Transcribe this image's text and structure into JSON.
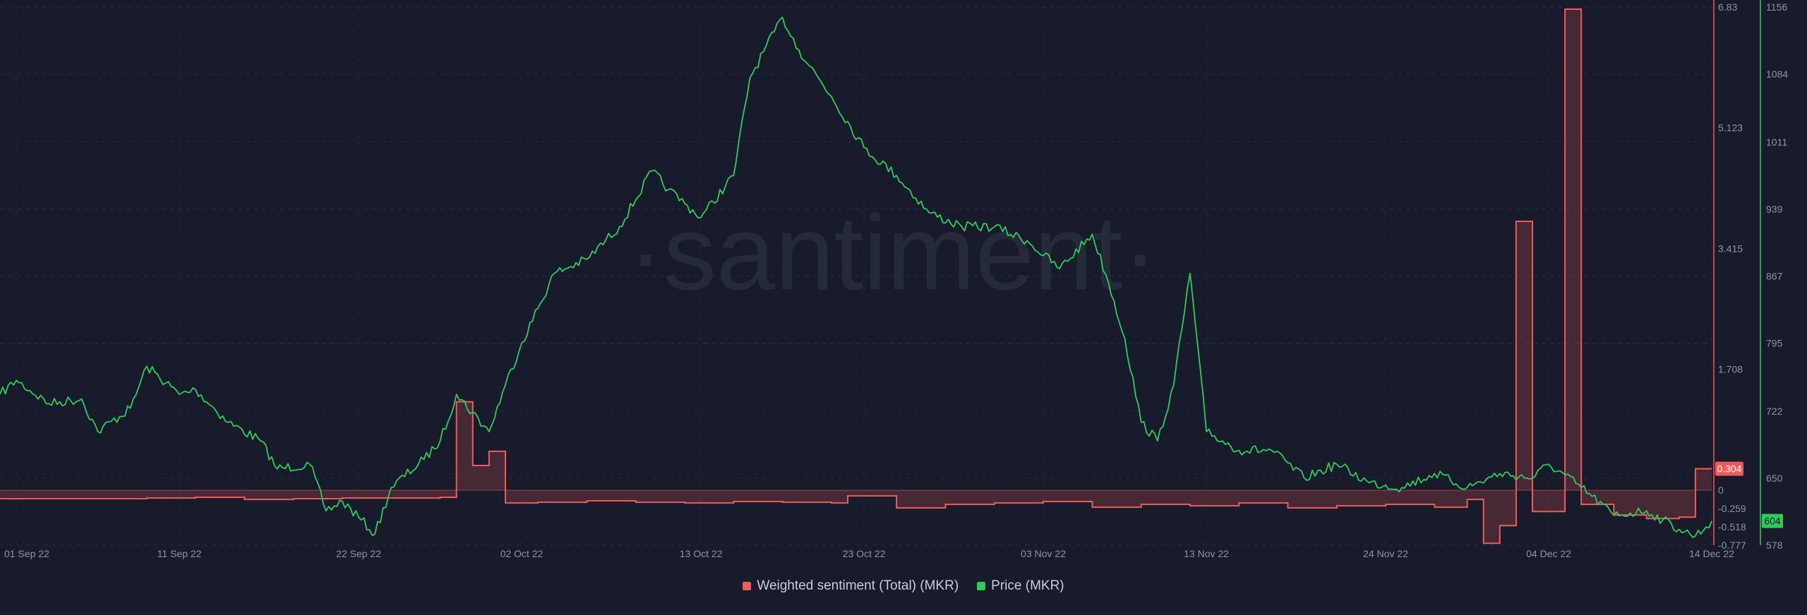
{
  "chart_data": {
    "type": "line",
    "watermark": "·santiment·",
    "x_range": [
      "2022-08-31",
      "2022-12-14"
    ],
    "x_ticks": [
      {
        "date": "2022-09-01",
        "label": "01 Sep 22"
      },
      {
        "date": "2022-09-11",
        "label": "11 Sep 22"
      },
      {
        "date": "2022-09-22",
        "label": "22 Sep 22"
      },
      {
        "date": "2022-10-02",
        "label": "02 Oct 22"
      },
      {
        "date": "2022-10-13",
        "label": "13 Oct 22"
      },
      {
        "date": "2022-10-23",
        "label": "23 Oct 22"
      },
      {
        "date": "2022-11-03",
        "label": "03 Nov 22"
      },
      {
        "date": "2022-11-13",
        "label": "13 Nov 22"
      },
      {
        "date": "2022-11-24",
        "label": "24 Nov 22"
      },
      {
        "date": "2022-12-04",
        "label": "04 Dec 22"
      },
      {
        "date": "2022-12-14",
        "label": "14 Dec 22"
      }
    ],
    "sentiment_axis": {
      "ylim": [
        -0.777,
        6.83
      ],
      "ticks": [
        "6.83",
        "5.123",
        "3.415",
        "1.708",
        "0",
        "-0.259",
        "-0.518",
        "-0.777"
      ],
      "tick_values": [
        6.83,
        5.123,
        3.415,
        1.708,
        0,
        -0.259,
        -0.518,
        -0.777
      ]
    },
    "price_axis": {
      "ylim": [
        578,
        1156
      ],
      "ticks": [
        "1156",
        "1084",
        "1011",
        "939",
        "867",
        "795",
        "722",
        "650",
        "578"
      ],
      "tick_values": [
        1156,
        1084,
        1011,
        939,
        867,
        795,
        722,
        650,
        578
      ]
    },
    "series": [
      {
        "name": "Weighted sentiment (Total) (MKR)",
        "axis": "sentiment",
        "color": "#ef5b5b",
        "current_label": "0.304",
        "x": [
          "2022-08-31",
          "2022-09-03",
          "2022-09-06",
          "2022-09-09",
          "2022-09-12",
          "2022-09-15",
          "2022-09-18",
          "2022-09-21",
          "2022-09-24",
          "2022-09-27",
          "2022-09-28",
          "2022-09-29",
          "2022-09-30",
          "2022-10-01",
          "2022-10-03",
          "2022-10-06",
          "2022-10-09",
          "2022-10-12",
          "2022-10-15",
          "2022-10-18",
          "2022-10-21",
          "2022-10-22",
          "2022-10-25",
          "2022-10-28",
          "2022-10-31",
          "2022-11-03",
          "2022-11-06",
          "2022-11-09",
          "2022-11-12",
          "2022-11-15",
          "2022-11-18",
          "2022-11-21",
          "2022-11-24",
          "2022-11-27",
          "2022-11-29",
          "2022-11-30",
          "2022-12-01",
          "2022-12-02",
          "2022-12-03",
          "2022-12-05",
          "2022-12-06",
          "2022-12-08",
          "2022-12-10",
          "2022-12-12",
          "2022-12-13",
          "2022-12-14"
        ],
        "y": [
          -0.12,
          -0.12,
          -0.12,
          -0.11,
          -0.1,
          -0.13,
          -0.12,
          -0.11,
          -0.11,
          -0.1,
          1.25,
          0.35,
          0.55,
          -0.18,
          -0.17,
          -0.15,
          -0.17,
          -0.18,
          -0.16,
          -0.17,
          -0.18,
          -0.08,
          -0.25,
          -0.2,
          -0.18,
          -0.16,
          -0.24,
          -0.2,
          -0.22,
          -0.18,
          -0.25,
          -0.22,
          -0.2,
          -0.24,
          -0.13,
          -0.75,
          -0.5,
          3.8,
          -0.3,
          6.8,
          -0.2,
          -0.35,
          -0.4,
          -0.38,
          0.304,
          0.304
        ]
      },
      {
        "name": "Price (MKR)",
        "axis": "price",
        "color": "#2dcc5a",
        "current_label": "604",
        "x": [
          "2022-08-31",
          "2022-09-01",
          "2022-09-03",
          "2022-09-05",
          "2022-09-06",
          "2022-09-08",
          "2022-09-09",
          "2022-09-11",
          "2022-09-12",
          "2022-09-14",
          "2022-09-16",
          "2022-09-17",
          "2022-09-19",
          "2022-09-20",
          "2022-09-21",
          "2022-09-22",
          "2022-09-23",
          "2022-09-24",
          "2022-09-26",
          "2022-09-27",
          "2022-09-28",
          "2022-09-30",
          "2022-10-01",
          "2022-10-02",
          "2022-10-04",
          "2022-10-06",
          "2022-10-08",
          "2022-10-10",
          "2022-10-11",
          "2022-10-12",
          "2022-10-13",
          "2022-10-15",
          "2022-10-16",
          "2022-10-18",
          "2022-10-19",
          "2022-10-21",
          "2022-10-23",
          "2022-10-25",
          "2022-10-27",
          "2022-10-29",
          "2022-10-31",
          "2022-11-02",
          "2022-11-04",
          "2022-11-06",
          "2022-11-07",
          "2022-11-08",
          "2022-11-09",
          "2022-11-10",
          "2022-11-11",
          "2022-11-12",
          "2022-11-13",
          "2022-11-15",
          "2022-11-17",
          "2022-11-19",
          "2022-11-21",
          "2022-11-23",
          "2022-11-25",
          "2022-11-27",
          "2022-11-29",
          "2022-12-01",
          "2022-12-03",
          "2022-12-04",
          "2022-12-06",
          "2022-12-08",
          "2022-12-10",
          "2022-12-11",
          "2022-12-12",
          "2022-12-13",
          "2022-12-14"
        ],
        "y": [
          740,
          755,
          730,
          735,
          700,
          725,
          770,
          740,
          745,
          710,
          690,
          660,
          665,
          615,
          625,
          608,
          590,
          640,
          670,
          690,
          740,
          700,
          750,
          795,
          870,
          885,
          920,
          980,
          960,
          945,
          930,
          975,
          1080,
          1145,
          1110,
          1060,
          1005,
          975,
          935,
          920,
          920,
          905,
          875,
          912,
          860,
          800,
          710,
          690,
          750,
          870,
          700,
          680,
          680,
          650,
          665,
          645,
          640,
          655,
          640,
          655,
          650,
          665,
          640,
          610,
          615,
          605,
          595,
          588,
          604
        ]
      }
    ]
  },
  "legend": {
    "sentiment_label": "Weighted sentiment (Total) (MKR)",
    "price_label": "Price (MKR)"
  }
}
